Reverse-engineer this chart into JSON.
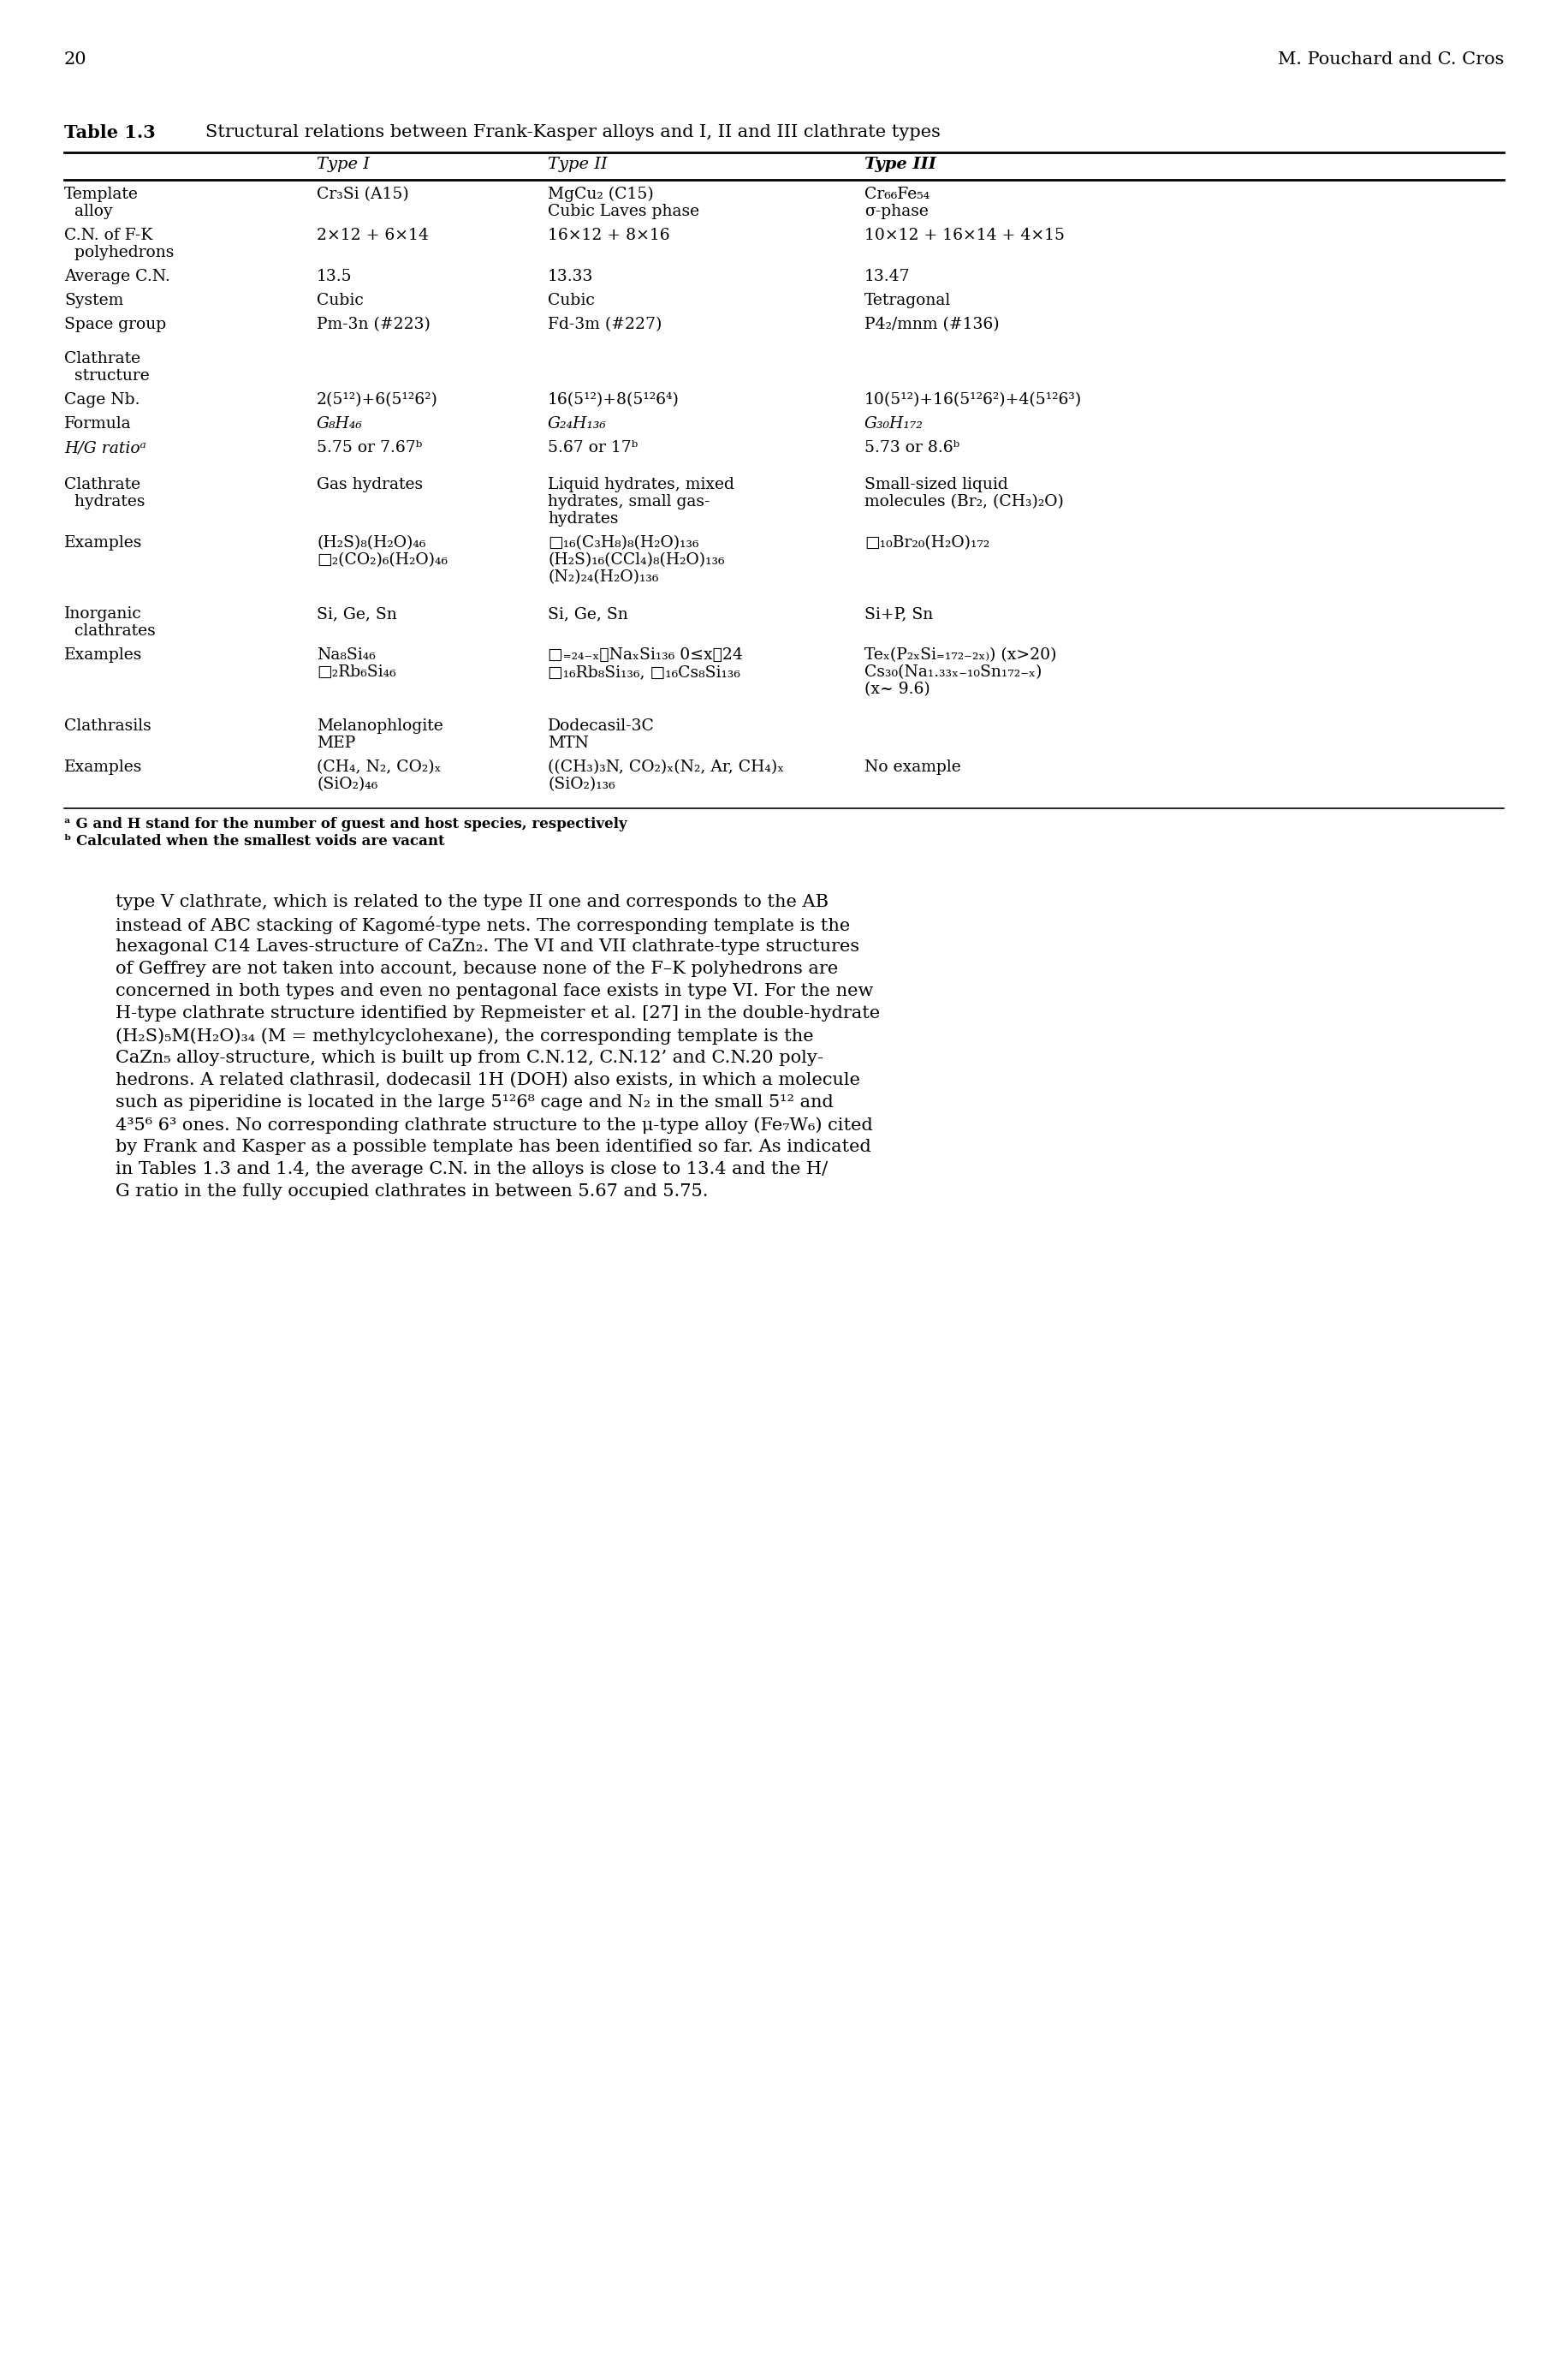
{
  "page_number": "20",
  "page_header": "M. Pouchard and C. Cros",
  "table_title": "Table 1.3",
  "table_caption": "Structural relations between Frank-Kasper alloys and I, II and III clathrate types",
  "body_text_lines": [
    "type V clathrate, which is related to the type II one and corresponds to the AB",
    "instead of ABC stacking of Kagomé-type nets. The corresponding template is the",
    "hexagonal C14 Laves-structure of CaZn₂. The VI and VII clathrate-type structures",
    "of Geffrey are not taken into account, because none of the F–K polyhedrons are",
    "concerned in both types and even no pentagonal face exists in type VI. For the new",
    "H-type clathrate structure identified by Repmeister et al. [27] in the double-hydrate",
    "(H₂S)₅M(H₂O)₃₄ (M = methylcyclohexane), the corresponding template is the",
    "CaZn₅ alloy-structure, which is built up from C.N.12, C.N.12’ and C.N.20 poly-",
    "hedrons. A related clathrasil, dodecasil 1H (DOH) also exists, in which a molecule",
    "such as piperidine is located in the large 5¹²6⁸ cage and N₂ in the small 5¹² and",
    "4³5⁶ 6³ ones. No corresponding clathrate structure to the μ-type alloy (Fe₇W₆) cited",
    "by Frank and Kasper as a possible template has been identified so far. As indicated",
    "in Tables 1.3 and 1.4, the average C.N. in the alloys is close to 13.4 and the H/",
    "G ratio in the fully occupied clathrates in between 5.67 and 5.75."
  ]
}
